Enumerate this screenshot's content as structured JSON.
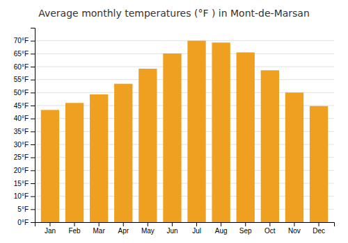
{
  "chart_data": {
    "type": "bar",
    "title": "Average monthly temperatures (°F ) in Mont-de-Marsan",
    "categories": [
      "Jan",
      "Feb",
      "Mar",
      "Apr",
      "May",
      "Jun",
      "Jul",
      "Aug",
      "Sep",
      "Oct",
      "Nov",
      "Dec"
    ],
    "values": [
      43.3,
      46.0,
      49.3,
      53.4,
      59.2,
      65.1,
      70.0,
      69.3,
      65.5,
      58.6,
      50.0,
      44.8
    ],
    "color": "#F0A020",
    "ylim": [
      0,
      75
    ],
    "yticks": [
      {
        "value": 0,
        "label": "0°F"
      },
      {
        "value": 5,
        "label": "5°F"
      },
      {
        "value": 10,
        "label": "10°F"
      },
      {
        "value": 15,
        "label": "15°F"
      },
      {
        "value": 20,
        "label": "20°F"
      },
      {
        "value": 25,
        "label": "25°F"
      },
      {
        "value": 30,
        "label": "30°F"
      },
      {
        "value": 35,
        "label": "35°F"
      },
      {
        "value": 40,
        "label": "40°F"
      },
      {
        "value": 45,
        "label": "45°F"
      },
      {
        "value": 50,
        "label": "50°F"
      },
      {
        "value": 55,
        "label": "55°F"
      },
      {
        "value": 60,
        "label": "60°F"
      },
      {
        "value": 65,
        "label": "65°F"
      },
      {
        "value": 70,
        "label": "70°F"
      }
    ],
    "grid": true
  }
}
